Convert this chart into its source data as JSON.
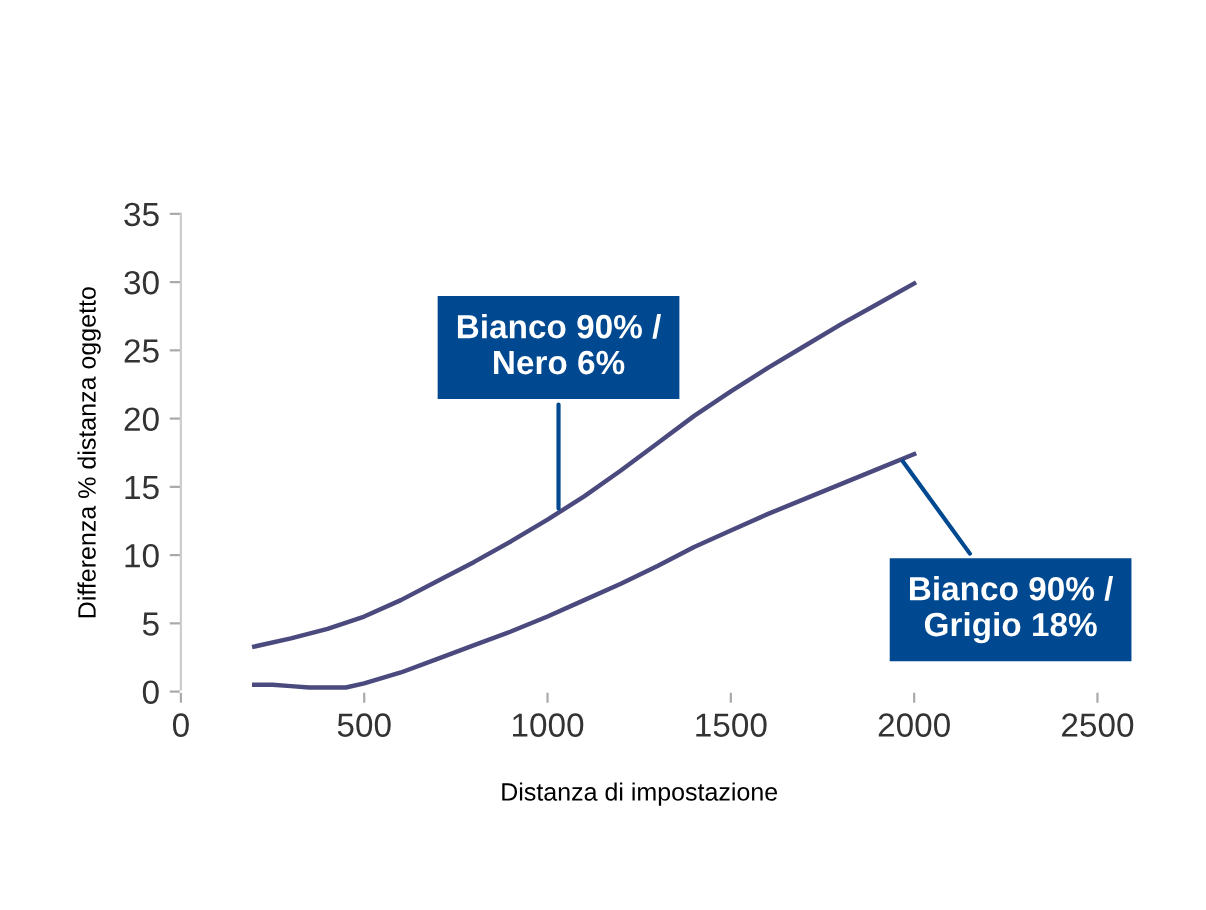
{
  "chart_data": {
    "type": "line",
    "xlabel": "Distanza di impostazione",
    "ylabel": "Differenza % distanza oggetto",
    "xlim": [
      0,
      2500
    ],
    "xticks": [
      0,
      500,
      1000,
      1500,
      2000,
      2500
    ],
    "ylim": [
      0,
      35
    ],
    "yticks": [
      0,
      5,
      10,
      15,
      20,
      25,
      30,
      35
    ],
    "grid": false,
    "legend": false,
    "marker": "none",
    "line_style": "solid",
    "series": [
      {
        "color": "#4b4a7e",
        "x": [
          200,
          300,
          400,
          500,
          600,
          700,
          800,
          900,
          1000,
          1100,
          1200,
          1300,
          1400,
          1500,
          1600,
          1700,
          1800,
          1900,
          2000
        ],
        "values": [
          3.3,
          3.9,
          4.6,
          5.5,
          6.7,
          8.1,
          9.5,
          11.0,
          12.6,
          14.3,
          16.2,
          18.2,
          20.2,
          22.0,
          23.7,
          25.3,
          26.9,
          28.4,
          29.9
        ]
      },
      {
        "color": "#4b4a7e",
        "x": [
          200,
          250,
          300,
          350,
          400,
          450,
          500,
          600,
          700,
          800,
          900,
          1000,
          1100,
          1200,
          1300,
          1400,
          1500,
          1600,
          1700,
          1800,
          1900,
          2000
        ],
        "values": [
          0.5,
          0.5,
          0.4,
          0.3,
          0.3,
          0.3,
          0.6,
          1.4,
          2.4,
          3.4,
          4.4,
          5.5,
          6.7,
          7.9,
          9.2,
          10.6,
          11.8,
          13.0,
          14.1,
          15.2,
          16.3,
          17.4
        ]
      }
    ],
    "annotations": [
      {
        "text": "Bianco 90% /\nNero 6%",
        "x": 1030,
        "y": 13.0
      },
      {
        "text": "Bianco 90% /\nGrigio 18%",
        "x": 1960,
        "y": 17.2
      }
    ]
  }
}
